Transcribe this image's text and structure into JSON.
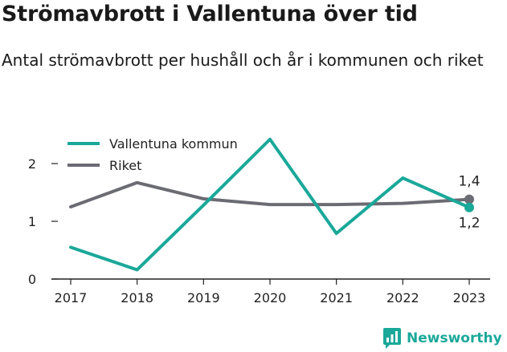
{
  "title": "Strömavbrott i Vallentuna över tid",
  "subtitle": "Antal strömavbrott per hushåll och år i kommunen och riket",
  "brand": {
    "name": "Newsworthy"
  },
  "colors": {
    "kommun": "#1aa899",
    "riket": "#6b6b73"
  },
  "chart_data": {
    "type": "line",
    "x": [
      "2017",
      "2018",
      "2019",
      "2020",
      "2021",
      "2022",
      "2023"
    ],
    "ylim": [
      0,
      2.5
    ],
    "yticks": [
      "0",
      "1",
      "2"
    ],
    "legend_position": "top-left",
    "grid": false,
    "series": [
      {
        "name": "Vallentuna kommun",
        "values": [
          0.55,
          0.16,
          1.28,
          2.42,
          0.79,
          1.75,
          1.24
        ],
        "end_label": "1,2"
      },
      {
        "name": "Riket",
        "values": [
          1.25,
          1.67,
          1.39,
          1.29,
          1.29,
          1.31,
          1.38
        ],
        "end_label": "1,4"
      }
    ]
  }
}
